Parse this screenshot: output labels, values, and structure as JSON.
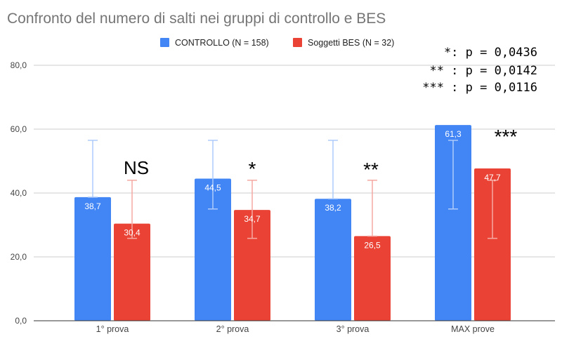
{
  "chart_data": {
    "type": "bar",
    "title": "Confronto del numero di salti nei gruppi di controllo e BES",
    "categories": [
      "1° prova",
      "2° prova",
      "3° prova",
      "MAX prove"
    ],
    "series": [
      {
        "name": "CONTROLLO (N = 158)",
        "color": "#4285f4",
        "error_color": "#aecbfa",
        "values": [
          38.7,
          44.5,
          38.2,
          61.3
        ],
        "value_labels": [
          "38,7",
          "44,5",
          "38,2",
          "61,3"
        ],
        "error_low": [
          38.7,
          35.0,
          38.2,
          35.0
        ],
        "error_high": [
          56.5,
          56.5,
          56.5,
          56.5
        ]
      },
      {
        "name": "Soggetti BES (N = 32)",
        "color": "#ea4335",
        "error_color": "#f4a9a2",
        "values": [
          30.4,
          34.7,
          26.5,
          47.7
        ],
        "value_labels": [
          "30,4",
          "34,7",
          "26,5",
          "47,7"
        ],
        "error_low": [
          25.8,
          25.8,
          26.5,
          25.8
        ],
        "error_high": [
          44.0,
          44.0,
          44.0,
          44.0
        ]
      }
    ],
    "ylim": [
      0,
      80
    ],
    "yticks": [
      0,
      20,
      40,
      60,
      80
    ],
    "ytick_labels": [
      "0,0",
      "20,0",
      "40,0",
      "60,0",
      "80,0"
    ],
    "grid": true,
    "legend_position": "top",
    "significance_marks": [
      "NS",
      "*",
      "**",
      "***"
    ],
    "annotation_lines": [
      "*: p = 0,0436",
      "** : p = 0,0142",
      "*** : p = 0,0116"
    ]
  },
  "colors": {
    "title": "#757575",
    "axis_text": "#444444",
    "grid": "#cccccc",
    "axis_line": "#333333"
  }
}
